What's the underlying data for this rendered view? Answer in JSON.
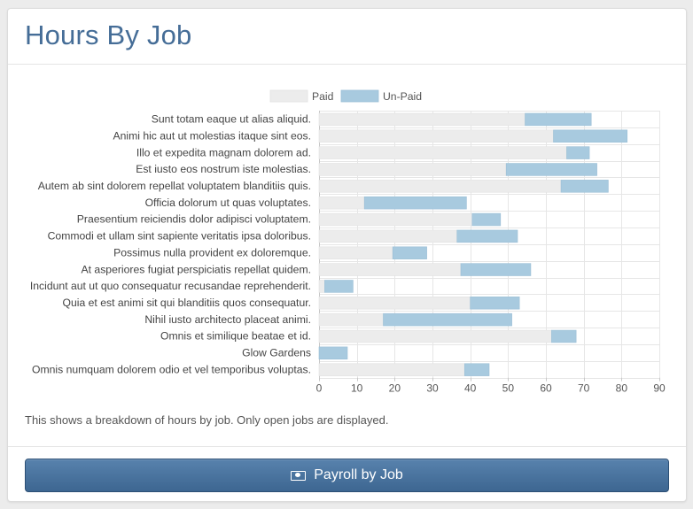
{
  "page": {
    "title": "Hours By Job",
    "note": "This shows a breakdown of hours by job. Only open jobs are displayed.",
    "button_label": "Payroll by Job",
    "button_icon": "money-icon"
  },
  "colors": {
    "paid": "#ececec",
    "unpaid": "#a8cadf",
    "title": "#456d97",
    "button": "#4a73a0"
  },
  "chart_data": {
    "type": "bar",
    "orientation": "horizontal",
    "stacked": true,
    "legend_position": "top-center",
    "grid": true,
    "xlim": [
      0,
      90
    ],
    "xticks": [
      0,
      10,
      20,
      30,
      40,
      50,
      60,
      70,
      80,
      90
    ],
    "categories": [
      "Sunt totam eaque ut alias aliquid.",
      "Animi hic aut ut molestias itaque sint eos.",
      "Illo et expedita magnam dolorem ad.",
      "Est iusto eos nostrum iste molestias.",
      "Autem ab sint dolorem repellat voluptatem blanditiis quis.",
      "Officia dolorum ut quas voluptates.",
      "Praesentium reiciendis dolor adipisci voluptatem.",
      "Commodi et ullam sint sapiente veritatis ipsa doloribus.",
      "Possimus nulla provident ex doloremque.",
      "At asperiores fugiat perspiciatis repellat quidem.",
      "Incidunt aut ut quo consequatur recusandae reprehenderit.",
      "Quia et est animi sit qui blanditiis quos consequatur.",
      "Nihil iusto architecto placeat animi.",
      "Omnis et similique beatae et id.",
      "Glow Gardens",
      "Omnis numquam dolorem odio et vel temporibus voluptas."
    ],
    "series": [
      {
        "name": "Paid",
        "values": [
          54.5,
          62,
          65.5,
          49.5,
          64,
          12,
          40.5,
          36.5,
          19.5,
          37.5,
          1.5,
          40,
          17,
          61.5,
          0,
          38.5
        ]
      },
      {
        "name": "Un-Paid",
        "values": [
          17.5,
          19.5,
          6,
          24,
          12.5,
          27,
          7.5,
          16,
          9,
          18.5,
          7.5,
          13,
          34,
          6.5,
          7.5,
          6.5
        ]
      }
    ]
  }
}
